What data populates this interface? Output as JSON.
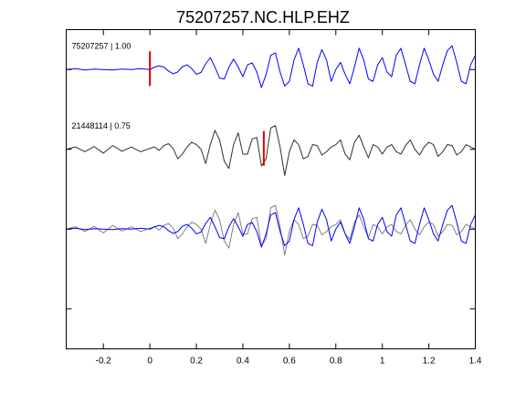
{
  "chart_data": {
    "type": "line",
    "title": "75207257.NC.HLP.EHZ",
    "xlabel": "",
    "ylabel": "",
    "xlim": [
      -0.36,
      1.4
    ],
    "x_ticks": [
      -0.2,
      0,
      0.2,
      0.4,
      0.6,
      0.8,
      1,
      1.2,
      1.4
    ],
    "x_tick_labels": [
      "-0.2",
      "0",
      "0.2",
      "0.4",
      "0.6",
      "0.8",
      "1",
      "1.2",
      "1.4"
    ],
    "ylim": [
      -3.5,
      0.5
    ],
    "y_ticks": [
      -3,
      -2,
      -1,
      0
    ],
    "y_tick_labels": [
      "",
      "",
      "",
      ""
    ],
    "grid": false,
    "traces": [
      {
        "name": "75207257 | 1.00",
        "offset": 0,
        "color": "#0000ff",
        "pick_time": 0.0,
        "pick_color": "#dd0000"
      },
      {
        "name": "21448114 | 0.75",
        "offset": -1,
        "color": "#303030",
        "pick_time": 0.49,
        "pick_color": "#dd0000"
      }
    ],
    "overlay": {
      "offset": -2,
      "series": [
        "21448114 | 0.75",
        "75207257 | 1.00"
      ],
      "colors": [
        "#808080",
        "#0000ff"
      ]
    },
    "series": [
      {
        "name": "75207257 | 1.00",
        "x": [
          -0.36,
          -0.32,
          -0.28,
          -0.24,
          -0.2,
          -0.16,
          -0.12,
          -0.08,
          -0.04,
          0,
          0.02,
          0.04,
          0.06,
          0.08,
          0.1,
          0.12,
          0.14,
          0.16,
          0.18,
          0.2,
          0.22,
          0.24,
          0.26,
          0.28,
          0.3,
          0.32,
          0.34,
          0.36,
          0.38,
          0.4,
          0.42,
          0.44,
          0.46,
          0.48,
          0.5,
          0.52,
          0.54,
          0.56,
          0.58,
          0.6,
          0.62,
          0.64,
          0.66,
          0.68,
          0.7,
          0.72,
          0.74,
          0.76,
          0.78,
          0.8,
          0.82,
          0.84,
          0.86,
          0.88,
          0.9,
          0.92,
          0.94,
          0.96,
          0.98,
          1,
          1.02,
          1.04,
          1.06,
          1.08,
          1.1,
          1.12,
          1.14,
          1.16,
          1.18,
          1.2,
          1.22,
          1.24,
          1.26,
          1.28,
          1.3,
          1.32,
          1.34,
          1.36,
          1.38,
          1.4
        ],
        "y": [
          0,
          0.02,
          -0.01,
          0.01,
          0,
          -0.01,
          0.01,
          0,
          0.02,
          0,
          0.05,
          0.08,
          0.05,
          -0.03,
          -0.09,
          -0.05,
          0.06,
          0.1,
          0.02,
          -0.1,
          -0.06,
          0.12,
          0.25,
          0.05,
          -0.18,
          -0.2,
          0.05,
          0.22,
          0.05,
          -0.15,
          0.1,
          0.14,
          -0.05,
          -0.38,
          -0.1,
          0.3,
          0.35,
          -0.05,
          -0.35,
          -0.25,
          0.2,
          0.45,
          0.1,
          -0.3,
          -0.35,
          0.15,
          0.42,
          0.2,
          -0.25,
          0.0,
          0.15,
          -0.1,
          -0.3,
          0.05,
          0.45,
          0.2,
          -0.2,
          -0.25,
          0.1,
          0.25,
          -0.05,
          -0.15,
          0.3,
          0.45,
          0.1,
          -0.25,
          -0.3,
          0.1,
          0.45,
          0.2,
          -0.1,
          -0.25,
          0.1,
          0.4,
          0.5,
          0.15,
          -0.25,
          -0.3,
          0.1,
          0.3
        ]
      },
      {
        "name": "21448114 | 0.75",
        "x": [
          -0.36,
          -0.32,
          -0.28,
          -0.24,
          -0.2,
          -0.16,
          -0.12,
          -0.08,
          -0.04,
          0,
          0.02,
          0.04,
          0.06,
          0.08,
          0.1,
          0.12,
          0.14,
          0.16,
          0.18,
          0.2,
          0.22,
          0.24,
          0.26,
          0.28,
          0.3,
          0.32,
          0.34,
          0.36,
          0.38,
          0.4,
          0.42,
          0.44,
          0.46,
          0.48,
          0.5,
          0.52,
          0.54,
          0.56,
          0.58,
          0.6,
          0.62,
          0.64,
          0.66,
          0.68,
          0.7,
          0.72,
          0.74,
          0.76,
          0.78,
          0.8,
          0.82,
          0.84,
          0.86,
          0.88,
          0.9,
          0.92,
          0.94,
          0.96,
          0.98,
          1,
          1.02,
          1.04,
          1.06,
          1.08,
          1.1,
          1.12,
          1.14,
          1.16,
          1.18,
          1.2,
          1.22,
          1.24,
          1.26,
          1.28,
          1.3,
          1.32,
          1.34,
          1.36,
          1.38,
          1.4
        ],
        "y": [
          0,
          0.05,
          -0.05,
          0.06,
          -0.08,
          0.08,
          -0.04,
          0.05,
          -0.05,
          0.02,
          0.05,
          -0.02,
          0.08,
          0.12,
          0.02,
          -0.2,
          -0.1,
          0.05,
          0.15,
          0.1,
          0.0,
          -0.3,
          0.1,
          0.4,
          0.2,
          -0.25,
          -0.4,
          0.1,
          0.35,
          -0.1,
          -0.1,
          0.22,
          0.25,
          -0.35,
          -0.2,
          0.45,
          0.5,
          0.05,
          -0.55,
          -0.05,
          0.2,
          0.1,
          -0.2,
          -0.15,
          0.1,
          0.08,
          -0.12,
          -0.05,
          0.05,
          0.1,
          0.2,
          -0.1,
          -0.22,
          0.15,
          0.3,
          0.05,
          -0.18,
          0.1,
          0.05,
          -0.1,
          0.05,
          0.1,
          -0.05,
          -0.1,
          0.08,
          0.2,
          0.0,
          -0.12,
          0.05,
          0.15,
          0.1,
          -0.15,
          -0.05,
          0.1,
          0.08,
          -0.12,
          -0.05,
          0.1,
          0.05,
          0.0
        ]
      }
    ]
  }
}
